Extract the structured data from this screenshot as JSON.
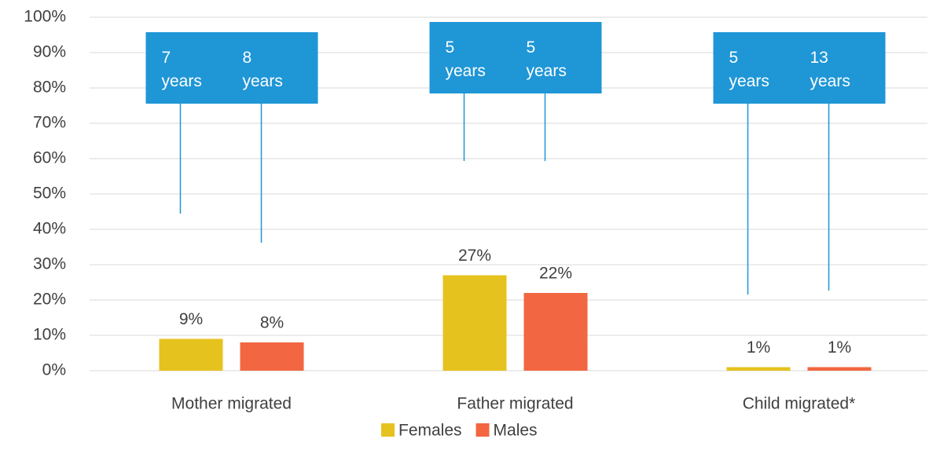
{
  "chart_data": {
    "type": "bar",
    "categories": [
      "Mother migrated",
      "Father migrated",
      "Child migrated*"
    ],
    "series": [
      {
        "name": "Females",
        "color": "#e6c21e",
        "values": [
          9,
          27,
          1
        ],
        "value_labels": [
          "9%",
          "27%",
          "1%"
        ]
      },
      {
        "name": "Males",
        "color": "#f26641",
        "values": [
          8,
          22,
          1
        ],
        "value_labels": [
          "8%",
          "22%",
          "1%"
        ]
      }
    ],
    "ylim": [
      0,
      100
    ],
    "yticks": [
      {
        "value": 0,
        "label": "0%"
      },
      {
        "value": 10,
        "label": "10%"
      },
      {
        "value": 20,
        "label": "20%"
      },
      {
        "value": 30,
        "label": "30%"
      },
      {
        "value": 40,
        "label": "40%"
      },
      {
        "value": 50,
        "label": "50%"
      },
      {
        "value": 60,
        "label": "60%"
      },
      {
        "value": 70,
        "label": "70%"
      },
      {
        "value": 80,
        "label": "80%"
      },
      {
        "value": 90,
        "label": "90%"
      },
      {
        "value": 100,
        "label": "100%"
      }
    ],
    "grid": true,
    "legend": "bottom",
    "annotations": [
      {
        "lines": [
          "7",
          "years"
        ]
      },
      {
        "lines": [
          "8",
          "years"
        ]
      },
      {
        "lines": [
          "5",
          "years"
        ]
      },
      {
        "lines": [
          "5",
          "years"
        ]
      },
      {
        "lines": [
          "5",
          "years"
        ]
      },
      {
        "lines": [
          "13",
          "years"
        ]
      }
    ]
  }
}
